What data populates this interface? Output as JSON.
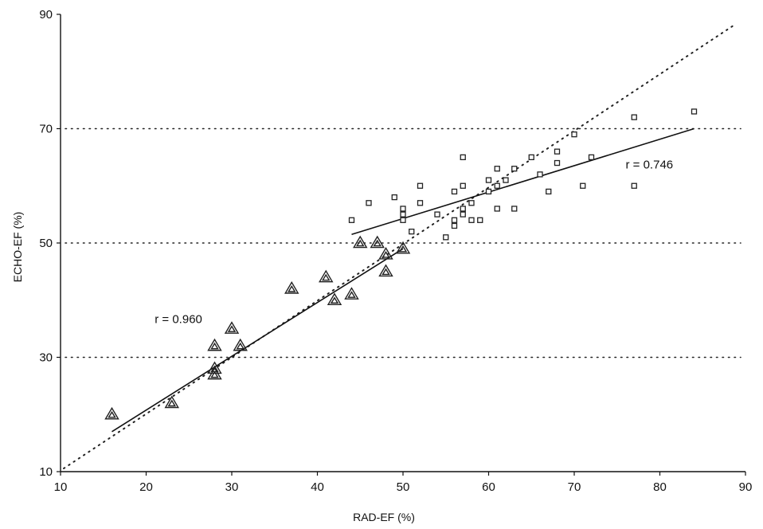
{
  "chart_data": {
    "type": "scatter",
    "title": "",
    "xlabel": "RAD-EF (%)",
    "ylabel": "ECHO-EF (%)",
    "xlim": [
      10,
      90
    ],
    "ylim": [
      10,
      90
    ],
    "xticks": [
      10,
      20,
      30,
      40,
      50,
      60,
      70,
      80,
      90
    ],
    "yticks": [
      10,
      30,
      50,
      70,
      90
    ],
    "grid_y": [
      30,
      50,
      70
    ],
    "reference_line": {
      "style": "dotted",
      "x": [
        10,
        90
      ],
      "y": [
        10,
        90
      ]
    },
    "series": [
      {
        "marker": "triangle",
        "points": [
          [
            16,
            20
          ],
          [
            23,
            22
          ],
          [
            28,
            27
          ],
          [
            28,
            28
          ],
          [
            28,
            32
          ],
          [
            30,
            35
          ],
          [
            31,
            32
          ],
          [
            37,
            42
          ],
          [
            41,
            44
          ],
          [
            42,
            40
          ],
          [
            44,
            41
          ],
          [
            45,
            50
          ],
          [
            47,
            50
          ],
          [
            48,
            48
          ],
          [
            48,
            45
          ],
          [
            50,
            49
          ]
        ],
        "fit": {
          "x": [
            16,
            50
          ],
          "y": [
            17,
            49
          ]
        }
      },
      {
        "marker": "square",
        "points": [
          [
            44,
            54
          ],
          [
            46,
            57
          ],
          [
            49,
            58
          ],
          [
            50,
            56
          ],
          [
            50,
            55
          ],
          [
            50,
            54
          ],
          [
            51,
            52
          ],
          [
            52,
            60
          ],
          [
            52,
            57
          ],
          [
            54,
            55
          ],
          [
            55,
            51
          ],
          [
            56,
            59
          ],
          [
            56,
            54
          ],
          [
            56,
            53
          ],
          [
            57,
            65
          ],
          [
            57,
            60
          ],
          [
            57,
            56
          ],
          [
            57,
            55
          ],
          [
            58,
            57
          ],
          [
            58,
            54
          ],
          [
            59,
            54
          ],
          [
            60,
            61
          ],
          [
            60,
            59
          ],
          [
            61,
            63
          ],
          [
            61,
            60
          ],
          [
            61,
            56
          ],
          [
            62,
            61
          ],
          [
            63,
            63
          ],
          [
            63,
            56
          ],
          [
            65,
            65
          ],
          [
            66,
            62
          ],
          [
            67,
            59
          ],
          [
            68,
            66
          ],
          [
            68,
            64
          ],
          [
            70,
            69
          ],
          [
            71,
            60
          ],
          [
            72,
            65
          ],
          [
            77,
            72
          ],
          [
            77,
            60
          ],
          [
            84,
            73
          ]
        ],
        "fit": {
          "x": [
            44,
            84
          ],
          "y": [
            51.5,
            70
          ]
        }
      }
    ],
    "annotations": [
      {
        "text": "r = 0.960",
        "x": 21,
        "y": 36
      },
      {
        "text": "r = 0.746",
        "x": 76,
        "y": 63
      }
    ]
  }
}
